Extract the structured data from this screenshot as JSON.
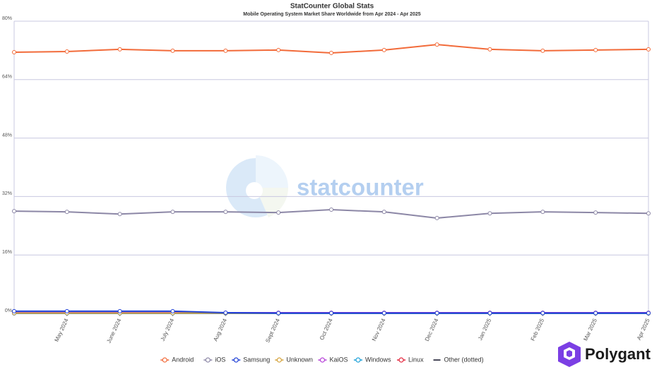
{
  "chart_data": {
    "type": "line",
    "title": "StatCounter Global Stats",
    "subtitle": "Mobile Operating System Market Share Worldwide from Apr 2024 - Apr 2025",
    "watermark": "statcounter",
    "brand": "Polygant",
    "categories": [
      null,
      "May 2024",
      "June 2024",
      "July 2024",
      "Aug 2024",
      "Sept 2024",
      "Oct 2024",
      "Nov 2024",
      "Dec 2024",
      "Jan 2025",
      "Feb 2025",
      "Mar 2025",
      "Apr 2025"
    ],
    "ylim": [
      0,
      80
    ],
    "yticks": [
      {
        "value": 0,
        "label": "0%"
      },
      {
        "value": 16,
        "label": "16%"
      },
      {
        "value": 32,
        "label": "32%"
      },
      {
        "value": 48,
        "label": "48%"
      },
      {
        "value": 64,
        "label": "64%"
      },
      {
        "value": 80,
        "label": "80%"
      }
    ],
    "grid": true,
    "legend": "bottom",
    "series": [
      {
        "name": "Android",
        "color": "#f26b3a",
        "values": [
          71.5,
          71.7,
          72.3,
          71.9,
          71.9,
          72.1,
          71.3,
          72.1,
          73.6,
          72.3,
          71.9,
          72.1,
          72.3
        ]
      },
      {
        "name": "iOS",
        "color": "#8c87a6",
        "values": [
          28.0,
          27.8,
          27.2,
          27.8,
          27.8,
          27.6,
          28.4,
          27.8,
          26.1,
          27.4,
          27.8,
          27.6,
          27.4
        ]
      },
      {
        "name": "Samsung",
        "color": "#1e3fd6",
        "values": [
          0.6,
          0.6,
          0.6,
          0.6,
          0.2,
          0.1,
          0.1,
          0.1,
          0.1,
          0.1,
          0.1,
          0.1,
          0.1
        ]
      },
      {
        "name": "Unknown",
        "color": "#d4a23a",
        "values": [
          0.1,
          0.1,
          0.1,
          0.1,
          0.1,
          0.1,
          0.1,
          0.1,
          0.1,
          0.1,
          0.1,
          0.1,
          0.1
        ]
      },
      {
        "name": "KaiOS",
        "color": "#b53fd8",
        "values": [
          0.2,
          0.2,
          0.2,
          0.2,
          0.2,
          0.2,
          0.2,
          0.2,
          0.2,
          0.2,
          0.2,
          0.2,
          0.2
        ]
      },
      {
        "name": "Windows",
        "color": "#1ba0d8",
        "values": [
          0.03,
          0.03,
          0.03,
          0.03,
          0.03,
          0.03,
          0.03,
          0.03,
          0.03,
          0.03,
          0.03,
          0.03,
          0.03
        ]
      },
      {
        "name": "Linux",
        "color": "#e3243b",
        "values": [
          0.02,
          0.02,
          0.02,
          0.02,
          0.02,
          0.02,
          0.02,
          0.02,
          0.02,
          0.02,
          0.02,
          0.02,
          0.02
        ]
      },
      {
        "name": "Other (dotted)",
        "color": "#4a4a5a",
        "values": [
          0.1,
          0.1,
          0.1,
          0.1,
          0.1,
          0.1,
          0.1,
          0.1,
          0.1,
          0.1,
          0.1,
          0.1,
          0.1
        ]
      }
    ]
  }
}
